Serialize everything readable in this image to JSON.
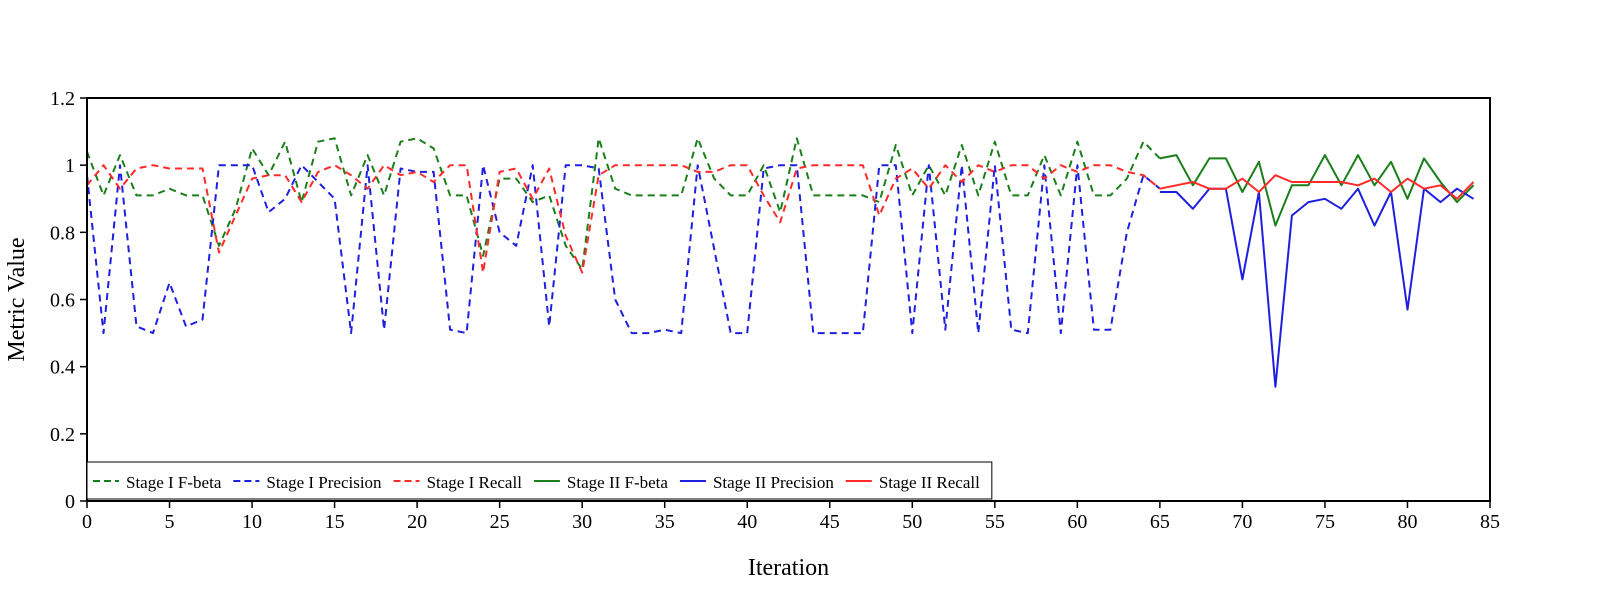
{
  "chart_data": {
    "type": "line",
    "title": "",
    "xlabel": "Iteration",
    "ylabel": "Metric Value",
    "xlim": [
      0,
      85
    ],
    "ylim": [
      0,
      1.2
    ],
    "xticks": [
      "0",
      "5",
      "10",
      "15",
      "20",
      "25",
      "30",
      "35",
      "40",
      "45",
      "50",
      "55",
      "60",
      "65",
      "70",
      "75",
      "80",
      "85"
    ],
    "yticks": [
      "0",
      "0.2",
      "0.4",
      "0.6",
      "0.8",
      "1",
      "1.2"
    ],
    "grid": false,
    "legend_placement": "bottom-left",
    "series": [
      {
        "name": "Stage I F-beta",
        "color": "#1a7f1a",
        "dash": "dashed",
        "x": [
          0,
          1,
          2,
          3,
          4,
          5,
          6,
          7,
          8,
          9,
          10,
          11,
          12,
          13,
          14,
          15,
          16,
          17,
          18,
          19,
          20,
          21,
          22,
          23,
          24,
          25,
          26,
          27,
          28,
          29,
          30,
          31,
          32,
          33,
          34,
          35,
          36,
          37,
          38,
          39,
          40,
          41,
          42,
          43,
          44,
          45,
          46,
          47,
          48,
          49,
          50,
          51,
          52,
          53,
          54,
          55,
          56,
          57,
          58,
          59,
          60,
          61,
          62,
          63,
          64,
          65
        ],
        "values": [
          1.04,
          0.91,
          1.03,
          0.91,
          0.91,
          0.93,
          0.91,
          0.91,
          0.76,
          0.87,
          1.05,
          0.97,
          1.07,
          0.89,
          1.07,
          1.08,
          0.91,
          1.03,
          0.91,
          1.07,
          1.08,
          1.05,
          0.91,
          0.91,
          0.73,
          0.96,
          0.96,
          0.89,
          0.91,
          0.76,
          0.69,
          1.08,
          0.93,
          0.91,
          0.91,
          0.91,
          0.91,
          1.08,
          0.96,
          0.91,
          0.91,
          1.0,
          0.86,
          1.08,
          0.91,
          0.91,
          0.91,
          0.91,
          0.89,
          1.06,
          0.91,
          1.0,
          0.91,
          1.06,
          0.91,
          1.07,
          0.91,
          0.91,
          1.03,
          0.91,
          1.07,
          0.91,
          0.91,
          0.96,
          1.07,
          1.02
        ]
      },
      {
        "name": "Stage I Precision",
        "color": "#1f1fe0",
        "dash": "dashed",
        "x": [
          0,
          1,
          2,
          3,
          4,
          5,
          6,
          7,
          8,
          9,
          10,
          11,
          12,
          13,
          14,
          15,
          16,
          17,
          18,
          19,
          20,
          21,
          22,
          23,
          24,
          25,
          26,
          27,
          28,
          29,
          30,
          31,
          32,
          33,
          34,
          35,
          36,
          37,
          38,
          39,
          40,
          41,
          42,
          43,
          44,
          45,
          46,
          47,
          48,
          49,
          50,
          51,
          52,
          53,
          54,
          55,
          56,
          57,
          58,
          59,
          60,
          61,
          62,
          63,
          64,
          65
        ],
        "values": [
          0.97,
          0.5,
          1.0,
          0.52,
          0.5,
          0.65,
          0.52,
          0.54,
          1.0,
          1.0,
          1.0,
          0.86,
          0.9,
          1.0,
          0.95,
          0.9,
          0.5,
          1.0,
          0.51,
          0.99,
          0.98,
          0.98,
          0.51,
          0.5,
          1.0,
          0.8,
          0.76,
          1.0,
          0.52,
          1.0,
          1.0,
          0.99,
          0.6,
          0.5,
          0.5,
          0.51,
          0.5,
          1.0,
          0.75,
          0.5,
          0.5,
          0.99,
          1.0,
          1.0,
          0.5,
          0.5,
          0.5,
          0.5,
          1.0,
          1.0,
          0.5,
          1.0,
          0.51,
          1.0,
          0.5,
          1.0,
          0.51,
          0.5,
          1.0,
          0.5,
          1.0,
          0.51,
          0.51,
          0.8,
          0.97,
          0.93
        ]
      },
      {
        "name": "Stage I Recall",
        "color": "#ff2a2a",
        "dash": "dashed",
        "x": [
          0,
          1,
          2,
          3,
          4,
          5,
          6,
          7,
          8,
          9,
          10,
          11,
          12,
          13,
          14,
          15,
          16,
          17,
          18,
          19,
          20,
          21,
          22,
          23,
          24,
          25,
          26,
          27,
          28,
          29,
          30,
          31,
          32,
          33,
          34,
          35,
          36,
          37,
          38,
          39,
          40,
          41,
          42,
          43,
          44,
          45,
          46,
          47,
          48,
          49,
          50,
          51,
          52,
          53,
          54,
          55,
          56,
          57,
          58,
          59,
          60,
          61,
          62,
          63,
          64,
          65
        ],
        "values": [
          0.94,
          1.0,
          0.93,
          0.99,
          1.0,
          0.99,
          0.99,
          0.99,
          0.74,
          0.85,
          0.96,
          0.97,
          0.97,
          0.89,
          0.98,
          1.0,
          0.97,
          0.93,
          1.0,
          0.97,
          0.98,
          0.95,
          1.0,
          1.0,
          0.68,
          0.98,
          0.99,
          0.9,
          0.99,
          0.79,
          0.68,
          0.97,
          1.0,
          1.0,
          1.0,
          1.0,
          1.0,
          0.98,
          0.98,
          1.0,
          1.0,
          0.91,
          0.83,
          0.99,
          1.0,
          1.0,
          1.0,
          1.0,
          0.85,
          0.96,
          0.99,
          0.93,
          1.0,
          0.95,
          1.0,
          0.98,
          1.0,
          1.0,
          0.96,
          1.0,
          0.98,
          1.0,
          1.0,
          0.98,
          0.97,
          0.93
        ]
      },
      {
        "name": "Stage II F-beta",
        "color": "#1a7f1a",
        "dash": "solid",
        "x": [
          65,
          66,
          67,
          68,
          69,
          70,
          71,
          72,
          73,
          74,
          75,
          76,
          77,
          78,
          79,
          80,
          81,
          82,
          83,
          84
        ],
        "values": [
          1.02,
          1.03,
          0.94,
          1.02,
          1.02,
          0.92,
          1.01,
          0.82,
          0.94,
          0.94,
          1.03,
          0.94,
          1.03,
          0.94,
          1.01,
          0.9,
          1.02,
          0.95,
          0.89,
          0.94
        ]
      },
      {
        "name": "Stage II Precision",
        "color": "#1f1fe0",
        "dash": "solid",
        "x": [
          65,
          66,
          67,
          68,
          69,
          70,
          71,
          72,
          73,
          74,
          75,
          76,
          77,
          78,
          79,
          80,
          81,
          82,
          83,
          84
        ],
        "values": [
          0.92,
          0.92,
          0.87,
          0.93,
          0.93,
          0.66,
          0.92,
          0.34,
          0.85,
          0.89,
          0.9,
          0.87,
          0.93,
          0.82,
          0.92,
          0.57,
          0.93,
          0.89,
          0.93,
          0.9
        ]
      },
      {
        "name": "Stage II Recall",
        "color": "#ff2a2a",
        "dash": "solid",
        "x": [
          65,
          66,
          67,
          68,
          69,
          70,
          71,
          72,
          73,
          74,
          75,
          76,
          77,
          78,
          79,
          80,
          81,
          82,
          83,
          84
        ],
        "values": [
          0.93,
          0.94,
          0.95,
          0.93,
          0.93,
          0.96,
          0.92,
          0.97,
          0.95,
          0.95,
          0.95,
          0.95,
          0.94,
          0.96,
          0.92,
          0.96,
          0.93,
          0.94,
          0.9,
          0.95
        ]
      }
    ]
  }
}
